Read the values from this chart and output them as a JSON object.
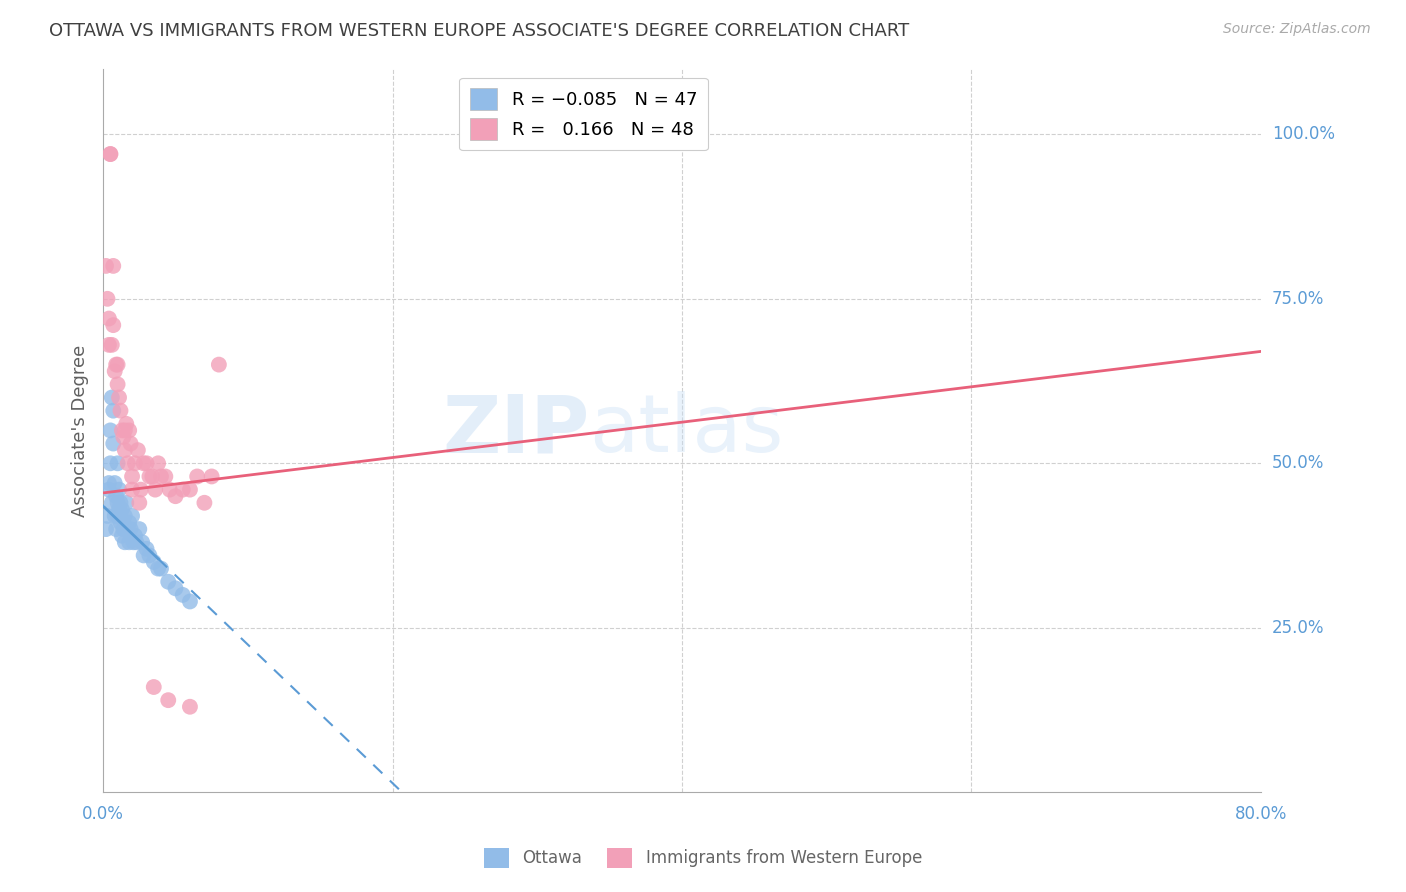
{
  "title": "OTTAWA VS IMMIGRANTS FROM WESTERN EUROPE ASSOCIATE'S DEGREE CORRELATION CHART",
  "source": "Source: ZipAtlas.com",
  "ylabel": "Associate's Degree",
  "ytick_vals": [
    0.25,
    0.5,
    0.75,
    1.0
  ],
  "ytick_labels": [
    "25.0%",
    "50.0%",
    "75.0%",
    "100.0%"
  ],
  "xtick_vals": [
    0.0,
    0.8
  ],
  "xtick_labels": [
    "0.0%",
    "80.0%"
  ],
  "ottawa_color": "#92bce8",
  "immigrants_color": "#f2a0b8",
  "ottawa_line_color": "#5b9bd5",
  "immigrants_line_color": "#e8607a",
  "watermark_color": "#c8dff5",
  "ottawa_x": [
    0.002,
    0.003,
    0.004,
    0.004,
    0.005,
    0.005,
    0.006,
    0.006,
    0.007,
    0.007,
    0.008,
    0.008,
    0.009,
    0.009,
    0.01,
    0.01,
    0.01,
    0.011,
    0.011,
    0.012,
    0.012,
    0.013,
    0.013,
    0.014,
    0.015,
    0.015,
    0.016,
    0.017,
    0.018,
    0.018,
    0.019,
    0.02,
    0.021,
    0.022,
    0.023,
    0.025,
    0.027,
    0.028,
    0.03,
    0.032,
    0.035,
    0.038,
    0.04,
    0.045,
    0.05,
    0.055,
    0.06
  ],
  "ottawa_y": [
    0.4,
    0.42,
    0.47,
    0.46,
    0.5,
    0.55,
    0.6,
    0.44,
    0.58,
    0.53,
    0.42,
    0.47,
    0.45,
    0.4,
    0.44,
    0.42,
    0.5,
    0.43,
    0.46,
    0.44,
    0.41,
    0.43,
    0.39,
    0.4,
    0.42,
    0.38,
    0.44,
    0.4,
    0.41,
    0.38,
    0.4,
    0.42,
    0.38,
    0.39,
    0.38,
    0.4,
    0.38,
    0.36,
    0.37,
    0.36,
    0.35,
    0.34,
    0.34,
    0.32,
    0.31,
    0.3,
    0.29
  ],
  "immigrants_x": [
    0.002,
    0.003,
    0.004,
    0.004,
    0.005,
    0.006,
    0.007,
    0.008,
    0.009,
    0.01,
    0.011,
    0.012,
    0.013,
    0.014,
    0.015,
    0.016,
    0.017,
    0.018,
    0.019,
    0.02,
    0.022,
    0.024,
    0.026,
    0.028,
    0.03,
    0.032,
    0.034,
    0.036,
    0.038,
    0.04,
    0.043,
    0.046,
    0.05,
    0.055,
    0.06,
    0.065,
    0.07,
    0.075,
    0.08,
    0.005,
    0.007,
    0.01,
    0.015,
    0.02,
    0.025,
    0.035,
    0.045,
    0.06
  ],
  "immigrants_y": [
    0.8,
    0.75,
    0.72,
    0.68,
    0.97,
    0.68,
    0.71,
    0.64,
    0.65,
    0.62,
    0.6,
    0.58,
    0.55,
    0.54,
    0.52,
    0.56,
    0.5,
    0.55,
    0.53,
    0.48,
    0.5,
    0.52,
    0.46,
    0.5,
    0.5,
    0.48,
    0.48,
    0.46,
    0.5,
    0.48,
    0.48,
    0.46,
    0.45,
    0.46,
    0.46,
    0.48,
    0.44,
    0.48,
    0.65,
    0.97,
    0.8,
    0.65,
    0.55,
    0.46,
    0.44,
    0.16,
    0.14,
    0.13
  ],
  "ottawa_R": -0.085,
  "ottawa_N": 47,
  "immigrants_R": 0.166,
  "immigrants_N": 48,
  "xlim": [
    0.0,
    0.8
  ],
  "ylim": [
    0.0,
    1.1
  ],
  "background_color": "#ffffff",
  "grid_color": "#d0d0d0",
  "title_color": "#404040",
  "ylabel_color": "#606060",
  "tick_label_color": "#5b9bd5"
}
